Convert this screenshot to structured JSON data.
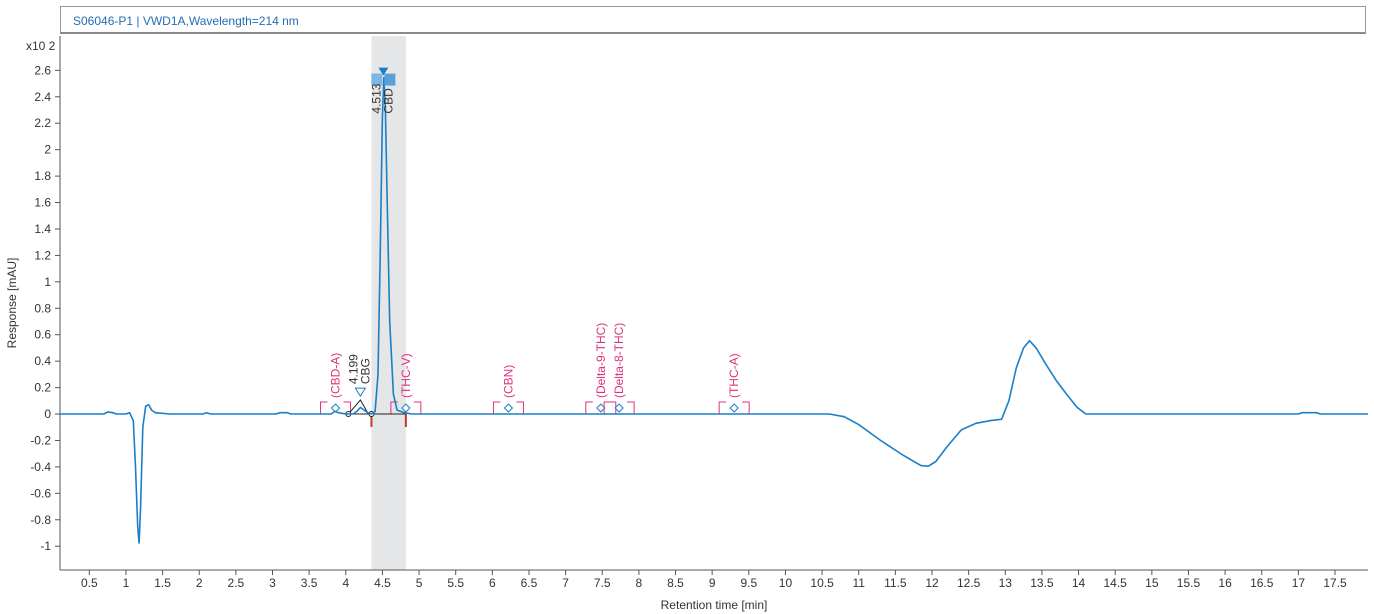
{
  "header": {
    "title": "S06046-P1 | VWD1A,Wavelength=214 nm"
  },
  "colors": {
    "trace": "#1a7fc8",
    "expected": "#e0307a",
    "integration": "#c0392b",
    "window": "#e4e6e8",
    "title": "#1f6fb5"
  },
  "chart_data": {
    "type": "line",
    "title": "S06046-P1 | VWD1A,Wavelength=214 nm",
    "xlabel": "Retention time [min]",
    "ylabel": "Response [mAU]",
    "y_multiplier": "x10 2",
    "xlim": [
      0.1,
      17.95
    ],
    "ylim": [
      -1.18,
      2.86
    ],
    "x_ticks": [
      0.5,
      1,
      1.5,
      2,
      2.5,
      3,
      3.5,
      4,
      4.5,
      5,
      5.5,
      6,
      6.5,
      7,
      7.5,
      8,
      8.5,
      9,
      9.5,
      10,
      10.5,
      11,
      11.5,
      12,
      12.5,
      13,
      13.5,
      14,
      14.5,
      15,
      15.5,
      16,
      16.5,
      17,
      17.5
    ],
    "x_tick_labels": [
      "0.5",
      "1",
      "1.5",
      "2",
      "2.5",
      "3",
      "3.5",
      "4",
      "4.5",
      "5",
      "5.5",
      "6",
      "6.5",
      "7",
      "7.5",
      "8",
      "8.5",
      "9",
      "9.5",
      "10",
      "10.5",
      "11",
      "11.5",
      "12",
      "12.5",
      "13",
      "13.5",
      "14",
      "14.5",
      "15",
      "15.5",
      "16",
      "16.5",
      "17",
      "17.5"
    ],
    "y_ticks": [
      -1,
      -0.8,
      -0.6,
      -0.4,
      -0.2,
      0,
      0.2,
      0.4,
      0.6,
      0.8,
      1,
      1.2,
      1.4,
      1.6,
      1.8,
      2,
      2.2,
      2.4,
      2.6
    ],
    "y_tick_labels": [
      "-1",
      "-0.8",
      "-0.6",
      "-0.4",
      "-0.2",
      "0",
      "0.2",
      "0.4",
      "0.6",
      "0.8",
      "1",
      "1.2",
      "1.4",
      "1.6",
      "1.8",
      "2",
      "2.2",
      "2.4",
      "2.6"
    ],
    "series": [
      {
        "points": [
          [
            0.1,
            0
          ],
          [
            0.7,
            0
          ],
          [
            0.75,
            0.015
          ],
          [
            0.82,
            0.01
          ],
          [
            0.87,
            0
          ],
          [
            1.0,
            0
          ],
          [
            1.05,
            0.01
          ],
          [
            1.1,
            -0.05
          ],
          [
            1.13,
            -0.4
          ],
          [
            1.16,
            -0.85
          ],
          [
            1.18,
            -0.98
          ],
          [
            1.2,
            -0.7
          ],
          [
            1.23,
            -0.1
          ],
          [
            1.27,
            0.06
          ],
          [
            1.31,
            0.07
          ],
          [
            1.35,
            0.03
          ],
          [
            1.4,
            0.01
          ],
          [
            1.6,
            0
          ],
          [
            2.05,
            0
          ],
          [
            2.1,
            0.01
          ],
          [
            2.15,
            0
          ],
          [
            3.05,
            0
          ],
          [
            3.1,
            0.01
          ],
          [
            3.2,
            0.01
          ],
          [
            3.25,
            0
          ],
          [
            3.8,
            0
          ],
          [
            3.85,
            0.02
          ],
          [
            3.9,
            0.01
          ],
          [
            4.0,
            0
          ],
          [
            4.1,
            0
          ],
          [
            4.15,
            0.02
          ],
          [
            4.2,
            0.05
          ],
          [
            4.25,
            0.03
          ],
          [
            4.3,
            0.01
          ],
          [
            4.35,
            0
          ],
          [
            4.4,
            0.02
          ],
          [
            4.44,
            0.3
          ],
          [
            4.47,
            1.2
          ],
          [
            4.5,
            2.25
          ],
          [
            4.52,
            2.55
          ],
          [
            4.54,
            2.3
          ],
          [
            4.57,
            1.5
          ],
          [
            4.6,
            0.7
          ],
          [
            4.65,
            0.15
          ],
          [
            4.7,
            0.03
          ],
          [
            4.8,
            0.01
          ],
          [
            4.9,
            0
          ],
          [
            10.6,
            0
          ],
          [
            10.8,
            -0.02
          ],
          [
            11.0,
            -0.08
          ],
          [
            11.3,
            -0.2
          ],
          [
            11.6,
            -0.31
          ],
          [
            11.85,
            -0.39
          ],
          [
            11.95,
            -0.395
          ],
          [
            12.05,
            -0.36
          ],
          [
            12.2,
            -0.25
          ],
          [
            12.4,
            -0.12
          ],
          [
            12.6,
            -0.07
          ],
          [
            12.8,
            -0.05
          ],
          [
            12.95,
            -0.04
          ],
          [
            13.05,
            0.1
          ],
          [
            13.15,
            0.35
          ],
          [
            13.25,
            0.5
          ],
          [
            13.33,
            0.555
          ],
          [
            13.42,
            0.5
          ],
          [
            13.55,
            0.38
          ],
          [
            13.7,
            0.25
          ],
          [
            13.85,
            0.14
          ],
          [
            13.98,
            0.05
          ],
          [
            14.1,
            0
          ],
          [
            14.3,
            0
          ],
          [
            17.0,
            0
          ],
          [
            17.05,
            0.01
          ],
          [
            17.25,
            0.01
          ],
          [
            17.3,
            0
          ],
          [
            17.95,
            0
          ]
        ]
      }
    ],
    "rt_window": [
      4.35,
      4.82
    ],
    "peak_marker_x": 4.513,
    "peaks": [
      {
        "label_lines": [
          "4.513",
          "CBD"
        ],
        "x": 4.513,
        "y": 2.5,
        "boxed": true
      },
      {
        "label_lines": [
          "4.199",
          "CBG"
        ],
        "x": 4.199,
        "y": 0.12,
        "boxed": false
      }
    ],
    "expected": [
      {
        "label": "(CBD-A)",
        "x": 3.86
      },
      {
        "label": "(THC-V)",
        "x": 4.82
      },
      {
        "label": "(CBN)",
        "x": 6.22
      },
      {
        "label": "(Delta-9-THC)",
        "x": 7.48
      },
      {
        "label": "(Delta-8-THC)",
        "x": 7.73
      },
      {
        "label": "(THC-A)",
        "x": 9.3
      }
    ]
  }
}
